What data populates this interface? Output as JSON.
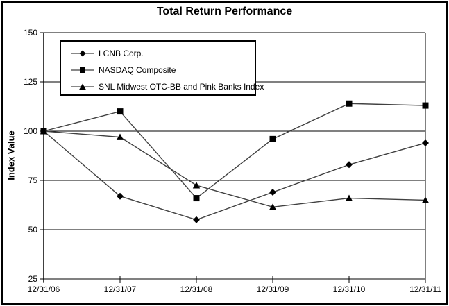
{
  "window": {
    "background": "#ffffff",
    "frame_border_color": "#000000"
  },
  "chart_data": {
    "type": "line",
    "title": "Total Return Performance",
    "xlabel": "",
    "ylabel": "Index Value",
    "categories": [
      "12/31/06",
      "12/31/07",
      "12/31/08",
      "12/31/09",
      "12/31/10",
      "12/31/11"
    ],
    "series": [
      {
        "name": "LCNB Corp.",
        "marker": "diamond",
        "values": [
          100,
          67,
          55,
          69,
          83,
          94
        ]
      },
      {
        "name": "NASDAQ Composite",
        "marker": "square",
        "values": [
          100,
          110,
          66,
          96,
          114,
          113
        ]
      },
      {
        "name": "SNL Midwest OTC-BB and Pink Banks Index",
        "marker": "triangle",
        "values": [
          100,
          97,
          72.5,
          61.5,
          66,
          65
        ]
      }
    ],
    "ylim": [
      25,
      150
    ],
    "yticks": [
      25,
      50,
      75,
      100,
      125,
      150
    ],
    "grid": true,
    "legend_position": "top-left",
    "line_color": "#404040",
    "marker_color": "#000000",
    "axis_color": "#000000"
  }
}
